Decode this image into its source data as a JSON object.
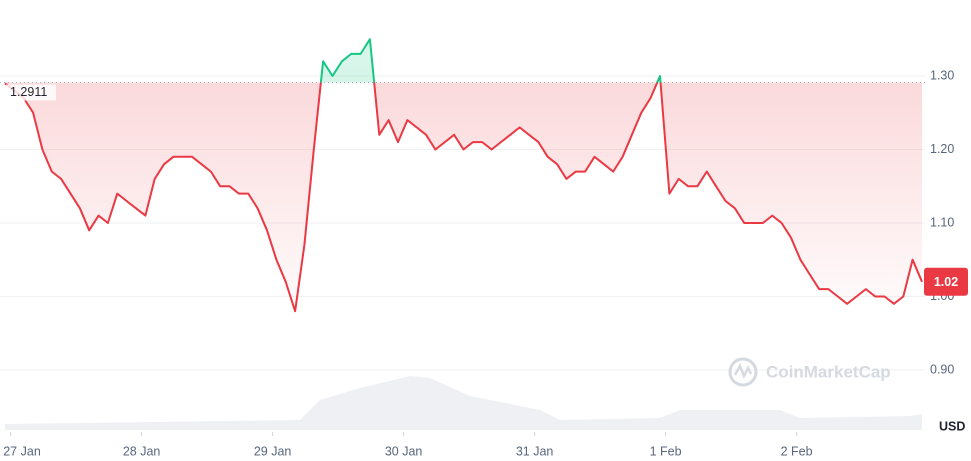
{
  "chart_data": {
    "type": "line",
    "baseline": 1.2911,
    "last_price": 1.02,
    "currency": "USD",
    "watermark": "CoinMarketCap",
    "up_color": "#16c784",
    "down_color": "#ea3943",
    "grid": true,
    "xlim": [
      0,
      98
    ],
    "xticks": [
      {
        "value": 0.6,
        "label": "27 Jan"
      },
      {
        "value": 14.6,
        "label": "28 Jan"
      },
      {
        "value": 28.6,
        "label": "29 Jan"
      },
      {
        "value": 42.6,
        "label": "30 Jan"
      },
      {
        "value": 56.6,
        "label": "31 Jan"
      },
      {
        "value": 70.6,
        "label": "1 Feb"
      },
      {
        "value": 84.6,
        "label": "2 Feb"
      }
    ],
    "ylim": [
      0.82,
      1.4
    ],
    "yticks": [
      {
        "value": 0.9,
        "label": "0.90"
      },
      {
        "value": 1,
        "label": "1.00"
      },
      {
        "value": 1.1,
        "label": "1.10"
      },
      {
        "value": 1.2,
        "label": "1.20"
      },
      {
        "value": 1.3,
        "label": "1.30"
      }
    ],
    "values": [
      1.29,
      1.28,
      1.27,
      1.25,
      1.2,
      1.17,
      1.16,
      1.14,
      1.12,
      1.09,
      1.11,
      1.1,
      1.14,
      1.13,
      1.12,
      1.11,
      1.16,
      1.18,
      1.19,
      1.19,
      1.19,
      1.18,
      1.17,
      1.15,
      1.15,
      1.14,
      1.14,
      1.12,
      1.09,
      1.05,
      1.02,
      0.98,
      1.07,
      1.2,
      1.32,
      1.3,
      1.32,
      1.33,
      1.33,
      1.35,
      1.22,
      1.24,
      1.21,
      1.24,
      1.23,
      1.22,
      1.2,
      1.21,
      1.22,
      1.2,
      1.21,
      1.21,
      1.2,
      1.21,
      1.22,
      1.23,
      1.22,
      1.21,
      1.19,
      1.18,
      1.16,
      1.17,
      1.17,
      1.19,
      1.18,
      1.17,
      1.19,
      1.22,
      1.25,
      1.27,
      1.3,
      1.14,
      1.16,
      1.15,
      1.15,
      1.17,
      1.15,
      1.13,
      1.12,
      1.1,
      1.1,
      1.1,
      1.11,
      1.1,
      1.08,
      1.05,
      1.03,
      1.01,
      1.01,
      1.0,
      0.99,
      1.0,
      1.01,
      1.0,
      1.0,
      0.99,
      1.0,
      1.05,
      1.02
    ]
  }
}
